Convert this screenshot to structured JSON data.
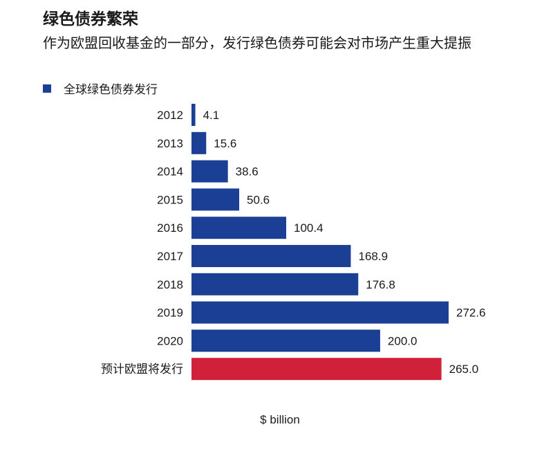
{
  "colors": {
    "global": "#1b3f95",
    "eu": "#d1213a"
  },
  "chart_data": {
    "type": "bar",
    "orientation": "horizontal",
    "title": "绿色债券繁荣",
    "subtitle": "作为欧盟回收基金的一部分，发行绿色债券可能会对市场产生重大提振",
    "legend": [
      "全球绿色债券发行"
    ],
    "legend_placement": "top-left",
    "categories": [
      "2012",
      "2013",
      "2014",
      "2015",
      "2016",
      "2017",
      "2018",
      "2019",
      "2020",
      "预计欧盟将发行"
    ],
    "values": [
      4.1,
      15.6,
      38.6,
      50.6,
      100.4,
      168.9,
      176.8,
      272.6,
      200.0,
      265.0
    ],
    "value_labels": [
      "4.1",
      "15.6",
      "38.6",
      "50.6",
      "100.4",
      "168.9",
      "176.8",
      "272.6",
      "200.0",
      "265.0"
    ],
    "series_of_bar": [
      "global",
      "global",
      "global",
      "global",
      "global",
      "global",
      "global",
      "global",
      "global",
      "eu"
    ],
    "xlabel": "$ billion",
    "ylabel": "",
    "xlim": [
      0,
      280
    ],
    "grid": false
  }
}
